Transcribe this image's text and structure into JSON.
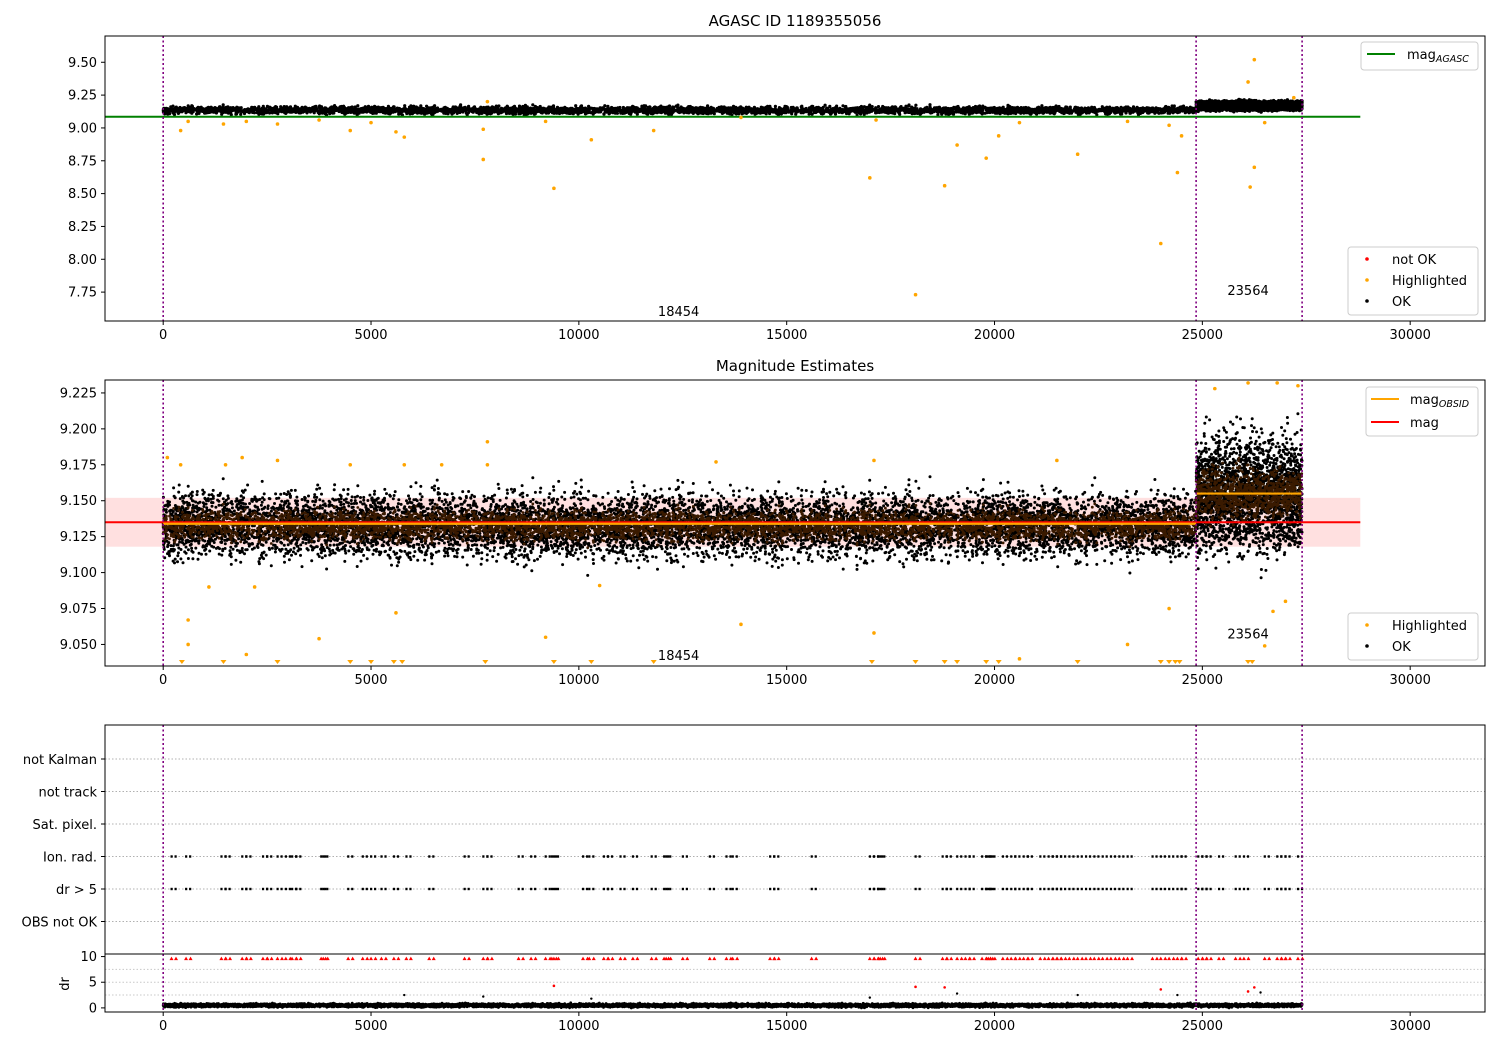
{
  "chart_data": [
    {
      "type": "scatter",
      "title": "AGASC ID 1189355056",
      "xlim": [
        -1400,
        31800
      ],
      "ylim": [
        7.53,
        9.7
      ],
      "x_ticks": [
        0,
        5000,
        10000,
        15000,
        20000,
        25000,
        30000
      ],
      "y_ticks": [
        7.75,
        8.0,
        8.25,
        8.5,
        8.75,
        9.0,
        9.25,
        9.5
      ],
      "obsid_boundaries": [
        0,
        24850,
        27400
      ],
      "annotations": [
        {
          "text": "18454",
          "x": 12400,
          "y": 7.6
        },
        {
          "text": "23564",
          "x": 26100,
          "y": 7.76
        }
      ],
      "legend_top": {
        "position": "top-right",
        "entries": [
          {
            "label": "mag",
            "subscript": "AGASC",
            "color": "#008000"
          }
        ]
      },
      "legend_bottom": {
        "position": "bottom-right",
        "entries": [
          {
            "label": "not OK",
            "color": "#ff0000"
          },
          {
            "label": "Highlighted",
            "color": "#ffa500"
          },
          {
            "label": "OK",
            "color": "#000000"
          }
        ]
      },
      "mag_agasc": 9.085,
      "mag_agasc_xrange": [
        -1400,
        28800
      ],
      "ok_band": [
        {
          "x0": 0,
          "x1": 24850,
          "center": 9.135,
          "spread": 0.025
        },
        {
          "x0": 24850,
          "x1": 27400,
          "center": 9.17,
          "spread": 0.03
        }
      ],
      "highlighted_points": [
        {
          "x": 420,
          "y": 8.98
        },
        {
          "x": 600,
          "y": 9.05
        },
        {
          "x": 1450,
          "y": 9.03
        },
        {
          "x": 2000,
          "y": 9.05
        },
        {
          "x": 2750,
          "y": 9.03
        },
        {
          "x": 3750,
          "y": 9.06
        },
        {
          "x": 4500,
          "y": 8.98
        },
        {
          "x": 5000,
          "y": 9.04
        },
        {
          "x": 5600,
          "y": 8.97
        },
        {
          "x": 5800,
          "y": 8.93
        },
        {
          "x": 7700,
          "y": 8.76
        },
        {
          "x": 7700,
          "y": 8.99
        },
        {
          "x": 7800,
          "y": 9.2
        },
        {
          "x": 9200,
          "y": 9.05
        },
        {
          "x": 9400,
          "y": 8.54
        },
        {
          "x": 10300,
          "y": 8.91
        },
        {
          "x": 11800,
          "y": 8.98
        },
        {
          "x": 13900,
          "y": 9.08
        },
        {
          "x": 17000,
          "y": 8.62
        },
        {
          "x": 17150,
          "y": 9.06
        },
        {
          "x": 18100,
          "y": 7.73
        },
        {
          "x": 18800,
          "y": 8.56
        },
        {
          "x": 19100,
          "y": 8.87
        },
        {
          "x": 19800,
          "y": 8.77
        },
        {
          "x": 20100,
          "y": 8.94
        },
        {
          "x": 20600,
          "y": 9.04
        },
        {
          "x": 22000,
          "y": 8.8
        },
        {
          "x": 23200,
          "y": 9.05
        },
        {
          "x": 24000,
          "y": 8.12
        },
        {
          "x": 24200,
          "y": 9.02
        },
        {
          "x": 24400,
          "y": 8.66
        },
        {
          "x": 24500,
          "y": 8.94
        },
        {
          "x": 26100,
          "y": 9.35
        },
        {
          "x": 26150,
          "y": 8.55
        },
        {
          "x": 26250,
          "y": 9.52
        },
        {
          "x": 26250,
          "y": 8.7
        },
        {
          "x": 26500,
          "y": 9.04
        },
        {
          "x": 27200,
          "y": 9.23
        }
      ]
    },
    {
      "type": "scatter",
      "title": "Magnitude Estimates",
      "xlim": [
        -1400,
        31800
      ],
      "ylim": [
        9.035,
        9.234
      ],
      "x_ticks": [
        0,
        5000,
        10000,
        15000,
        20000,
        25000,
        30000
      ],
      "y_ticks": [
        9.05,
        9.075,
        9.1,
        9.125,
        9.15,
        9.175,
        9.2,
        9.225
      ],
      "obsid_boundaries": [
        0,
        24850,
        27400
      ],
      "annotations": [
        {
          "text": "18454",
          "x": 12400,
          "y": 9.042
        },
        {
          "text": "23564",
          "x": 26100,
          "y": 9.057
        }
      ],
      "legend_top": {
        "position": "top-right",
        "entries": [
          {
            "label": "mag",
            "subscript": "OBSID",
            "color": "#ffa500"
          },
          {
            "label": "mag",
            "subscript": "",
            "color": "#ff0000"
          }
        ]
      },
      "legend_bottom": {
        "position": "bottom-right",
        "entries": [
          {
            "label": "Highlighted",
            "color": "#ffa500"
          },
          {
            "label": "OK",
            "color": "#000000"
          }
        ]
      },
      "mag": 9.135,
      "mag_band": [
        9.118,
        9.152
      ],
      "mag_xrange": [
        -1400,
        28800
      ],
      "mag_obsid": [
        {
          "x0": 0,
          "x1": 24850,
          "y": 9.134
        },
        {
          "x0": 24850,
          "x1": 27400,
          "y": 9.155
        }
      ],
      "ok_band": [
        {
          "x0": 0,
          "x1": 24850,
          "center": 9.133,
          "spread": 0.02
        },
        {
          "x0": 24850,
          "x1": 27400,
          "center": 9.155,
          "spread": 0.035
        }
      ],
      "highlighted_points": [
        {
          "x": 100,
          "y": 9.18
        },
        {
          "x": 420,
          "y": 9.175
        },
        {
          "x": 600,
          "y": 9.067
        },
        {
          "x": 600,
          "y": 9.05
        },
        {
          "x": 1100,
          "y": 9.09
        },
        {
          "x": 1500,
          "y": 9.175
        },
        {
          "x": 1900,
          "y": 9.18
        },
        {
          "x": 2000,
          "y": 9.043
        },
        {
          "x": 2200,
          "y": 9.09
        },
        {
          "x": 2750,
          "y": 9.178
        },
        {
          "x": 3750,
          "y": 9.054
        },
        {
          "x": 4500,
          "y": 9.175
        },
        {
          "x": 5600,
          "y": 9.072
        },
        {
          "x": 5800,
          "y": 9.175
        },
        {
          "x": 6700,
          "y": 9.175
        },
        {
          "x": 7800,
          "y": 9.191
        },
        {
          "x": 7800,
          "y": 9.175
        },
        {
          "x": 9200,
          "y": 9.055
        },
        {
          "x": 10500,
          "y": 9.091
        },
        {
          "x": 13300,
          "y": 9.177
        },
        {
          "x": 13900,
          "y": 9.064
        },
        {
          "x": 17100,
          "y": 9.058
        },
        {
          "x": 17100,
          "y": 9.178
        },
        {
          "x": 20600,
          "y": 9.04
        },
        {
          "x": 21500,
          "y": 9.178
        },
        {
          "x": 23200,
          "y": 9.05
        },
        {
          "x": 24200,
          "y": 9.075
        },
        {
          "x": 26500,
          "y": 9.049
        },
        {
          "x": 26700,
          "y": 9.073
        },
        {
          "x": 27000,
          "y": 9.08
        },
        {
          "x": 25300,
          "y": 9.228
        },
        {
          "x": 26100,
          "y": 9.232
        },
        {
          "x": 26800,
          "y": 9.232
        },
        {
          "x": 27300,
          "y": 9.23
        }
      ],
      "clipped_low": [
        450,
        1450,
        2750,
        4500,
        5000,
        5550,
        5750,
        7750,
        9400,
        10300,
        11800,
        17050,
        18100,
        18800,
        19100,
        19800,
        20100,
        22000,
        24000,
        24200,
        24350,
        24450,
        26100,
        26200
      ]
    },
    {
      "type": "scatter",
      "title": "",
      "xlim": [
        -1400,
        31800
      ],
      "x_ticks": [
        0,
        5000,
        10000,
        15000,
        20000,
        25000,
        30000
      ],
      "flag_rows": [
        "not Kalman",
        "not track",
        "Sat. pixel.",
        "Ion. rad.",
        "dr > 5",
        "OBS not OK"
      ],
      "obsid_boundaries": [
        0,
        24850,
        27400
      ],
      "flag_events_ion_rad": [
        200,
        550,
        1400,
        1500,
        1900,
        2000,
        2400,
        2500,
        2750,
        2950,
        3100,
        3200,
        3800,
        3850,
        4450,
        4800,
        5000,
        5250,
        5550,
        5850,
        6400,
        7250,
        7700,
        7800,
        8550,
        8850,
        9200,
        9350,
        9400,
        10100,
        10250,
        10600,
        10700,
        11000,
        11300,
        11750,
        12050,
        12100,
        12500,
        13150,
        13550,
        13700,
        14600,
        14700,
        15600,
        17000,
        17100,
        17200,
        17250,
        18100,
        18750,
        18850,
        19100,
        19300,
        19400,
        19700,
        19800,
        19850,
        19900,
        20200,
        20400,
        20500,
        20700,
        20800,
        21100,
        21300,
        21400,
        21500,
        21600,
        21800,
        22000,
        22200,
        22400,
        22600,
        22800,
        23000,
        23200,
        23800,
        24000,
        24200,
        24400,
        24500,
        24900,
        25000,
        25100,
        25400,
        25800,
        26000,
        26500,
        26800,
        26900,
        27000,
        27300
      ],
      "dr_panel": {
        "ylabel": "dr",
        "y_ticks": [
          0,
          5,
          10
        ],
        "ylim": [
          -0.8,
          10.5
        ],
        "ok_level": 0.5,
        "ok_spread": 0.3,
        "outliers_black": [
          {
            "x": 5800,
            "y": 2.5
          },
          {
            "x": 7700,
            "y": 2.2
          },
          {
            "x": 10300,
            "y": 1.8
          },
          {
            "x": 17000,
            "y": 2.0
          },
          {
            "x": 19100,
            "y": 2.8
          },
          {
            "x": 22000,
            "y": 2.5
          },
          {
            "x": 24400,
            "y": 2.5
          },
          {
            "x": 26400,
            "y": 3.0
          }
        ],
        "outliers_red": [
          {
            "x": 9400,
            "y": 4.3
          },
          {
            "x": 18100,
            "y": 4.1
          },
          {
            "x": 18800,
            "y": 4.0
          },
          {
            "x": 24000,
            "y": 3.6
          },
          {
            "x": 26100,
            "y": 3.2
          },
          {
            "x": 26250,
            "y": 4.0
          }
        ],
        "clipped_red_y": 9.6
      }
    }
  ]
}
